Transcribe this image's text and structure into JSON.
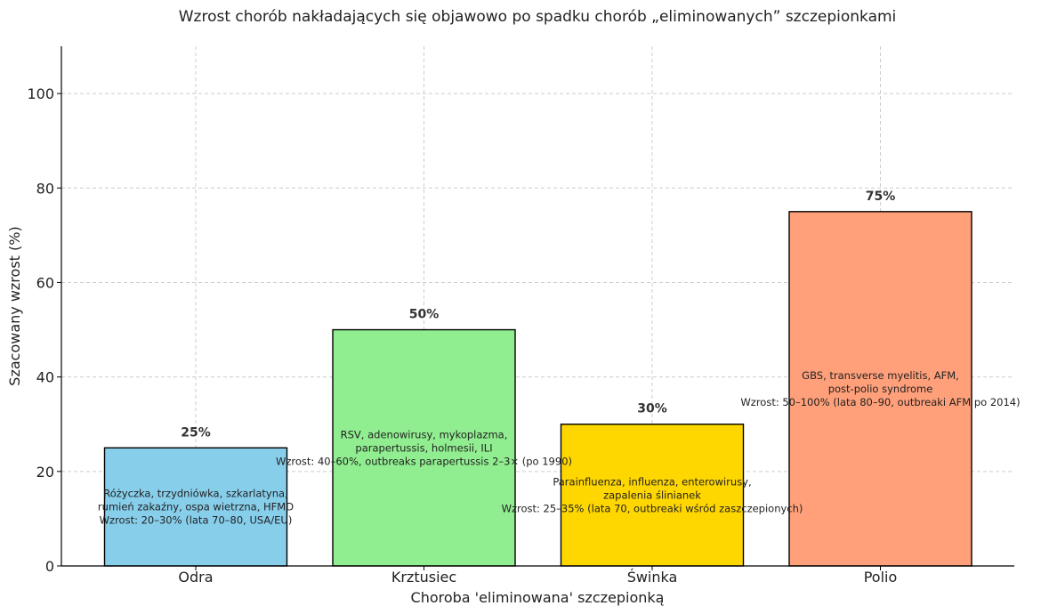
{
  "chart_data": {
    "type": "bar",
    "title": "Wzrost chorób nakładających się objawowo po spadku chorób „eliminowanych” szczepionkami",
    "xlabel": "Choroba 'eliminowana' szczepionką",
    "ylabel": "Szacowany wzrost (%)",
    "ylim": [
      0,
      110
    ],
    "yticks": [
      0,
      20,
      40,
      60,
      80,
      100
    ],
    "grid": true,
    "categories": [
      "Odra",
      "Krztusiec",
      "Świnka",
      "Polio"
    ],
    "values": [
      25,
      50,
      30,
      75
    ],
    "value_labels": [
      "25%",
      "50%",
      "30%",
      "75%"
    ],
    "colors": [
      "#87ceeb",
      "#90ee90",
      "#ffd700",
      "#ffa07a"
    ],
    "annotations": [
      [
        "Różyczka, trzydniówka, szkarlatyna,",
        "rumień zakaźny, ospa wietrzna, HFMD",
        "Wzrost: 20–30% (lata 70–80, USA/EU)"
      ],
      [
        "RSV, adenowirusy, mykoplazma,",
        "parapertussis, holmesii, ILI",
        "Wzrost: 40–60%, outbreaks parapertussis 2–3× (po 1990)"
      ],
      [
        "Parainfluenza, influenza, enterowirusy,",
        "zapalenia ślinianek",
        "Wzrost: 25–35% (lata 70, outbreaki wśród zaszczepionych)"
      ],
      [
        "GBS, transverse myelitis, AFM,",
        "post-polio syndrome",
        "Wzrost: 50–100% (lata 80–90, outbreaki AFM po 2014)"
      ]
    ]
  }
}
